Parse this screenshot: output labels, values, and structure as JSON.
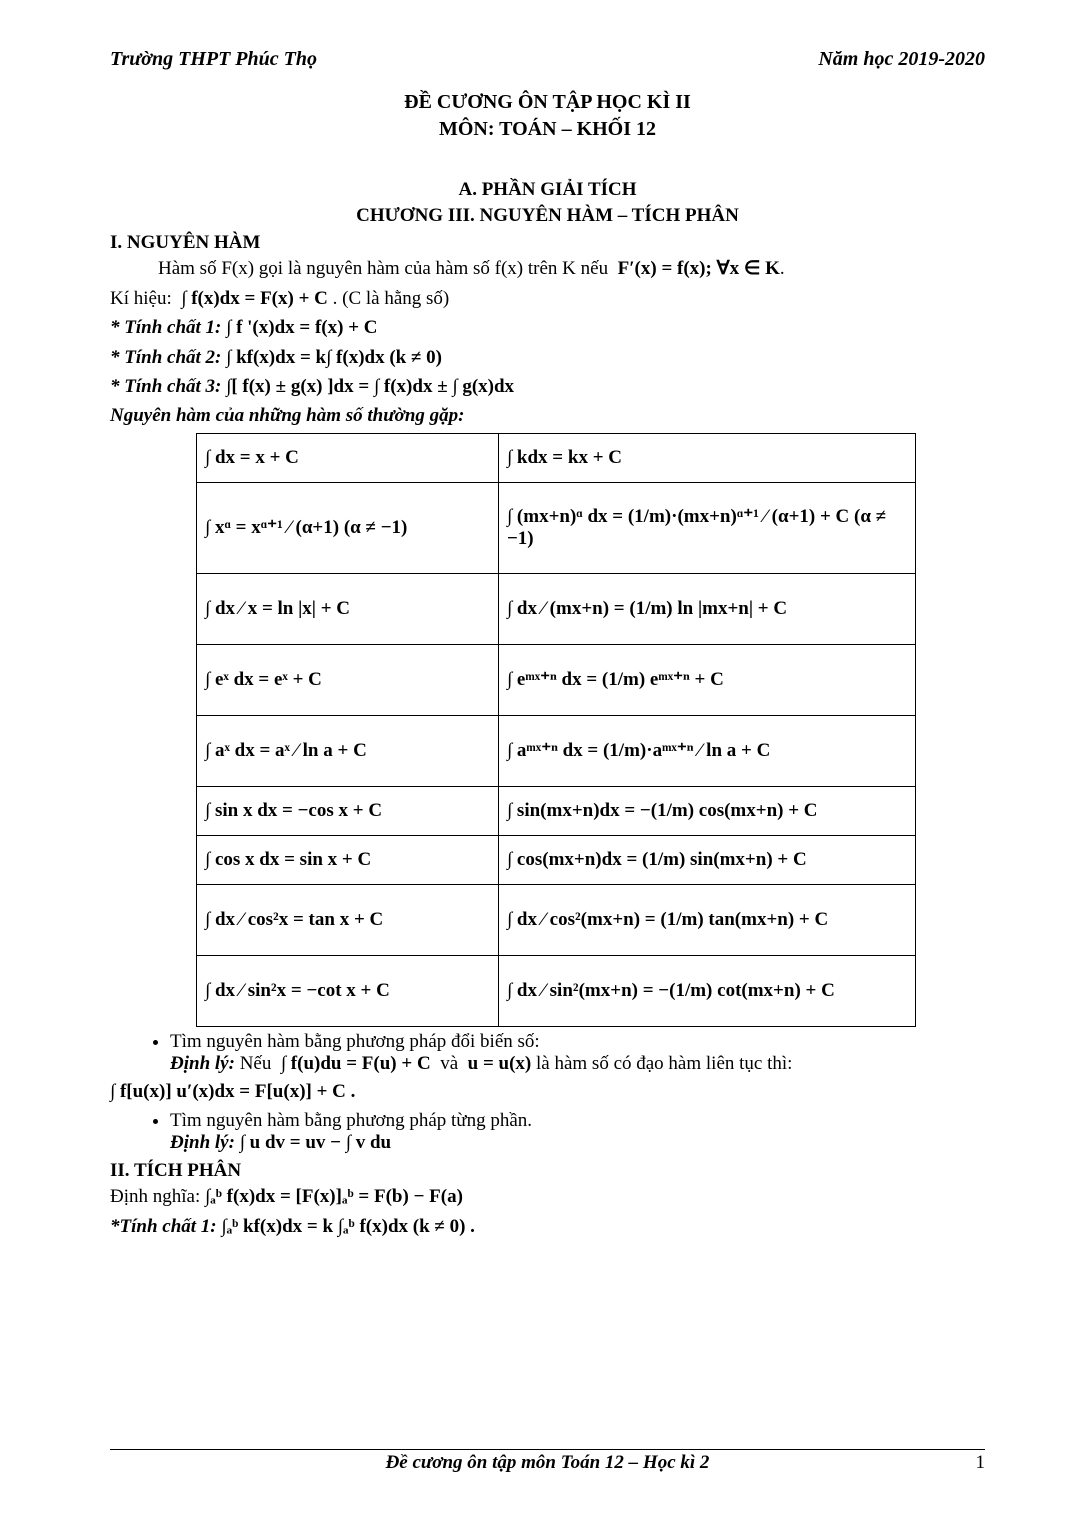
{
  "header": {
    "school": "Trường THPT Phúc Thọ",
    "year": "Năm học 2019-2020"
  },
  "title": {
    "line1": "ĐỀ CƯƠNG ÔN TẬP HỌC KÌ II",
    "line2": "MÔN: TOÁN – KHỐI 12"
  },
  "sectionA": {
    "heading": "A.  PHẦN GIẢI TÍCH",
    "chapter": "CHƯƠNG III. NGUYÊN HÀM – TÍCH PHÂN"
  },
  "s1": {
    "title": "I. NGUYÊN HÀM",
    "defn": "Hàm số F(x) gọi là nguyên hàm của hàm số f(x) trên K nếu  F′(x) = f(x); ∀x ∈ K .",
    "notation": "Kí hiệu:  ∫ f(x)dx = F(x) + C . (C là hằng số)",
    "p1_label": "* Tính chất 1:",
    "p1": " ∫ f '(x)dx = f(x) + C",
    "p2_label": "* Tính chất 2:",
    "p2": " ∫ kf(x)dx = k∫ f(x)dx  (k ≠ 0)",
    "p3_label": "* Tính chất 3:",
    "p3": " ∫[ f(x) ± g(x) ]dx = ∫ f(x)dx ± ∫ g(x)dx",
    "tableTitle": "Nguyên hàm của những hàm số thường gặp:"
  },
  "formulas": [
    [
      "∫ dx = x + C",
      "∫ kdx = kx + C"
    ],
    [
      "∫ xᵅ = xᵅ⁺¹ ⁄ (α+1)  (α ≠ −1)",
      "∫ (mx+n)ᵅ dx = (1/m)·(mx+n)ᵅ⁺¹ ⁄ (α+1) + C (α ≠ −1)"
    ],
    [
      "∫ dx ⁄ x = ln |x| + C",
      "∫ dx ⁄ (mx+n) = (1/m) ln |mx+n| + C"
    ],
    [
      "∫ eˣ dx = eˣ + C",
      "∫ eᵐˣ⁺ⁿ dx = (1/m) eᵐˣ⁺ⁿ + C"
    ],
    [
      "∫ aˣ dx = aˣ ⁄ ln a + C",
      "∫ aᵐˣ⁺ⁿ dx = (1/m)·aᵐˣ⁺ⁿ ⁄ ln a + C"
    ],
    [
      "∫ sin x dx = −cos x + C",
      "∫ sin(mx+n)dx = −(1/m) cos(mx+n) + C"
    ],
    [
      "∫ cos x dx = sin x + C",
      "∫ cos(mx+n)dx = (1/m) sin(mx+n) + C"
    ],
    [
      "∫ dx ⁄ cos²x = tan x + C",
      "∫ dx ⁄ cos²(mx+n) = (1/m) tan(mx+n) + C"
    ],
    [
      "∫ dx ⁄ sin²x = −cot x + C",
      "∫ dx ⁄ sin²(mx+n) = −(1/m) cot(mx+n) + C"
    ]
  ],
  "methods": {
    "bullet1": "Tìm nguyên hàm bằng phương pháp đổi biến số:",
    "dl_label": "Định lý:",
    "dl1_text": " Nếu  ∫ f(u)du = F(u) + C  và  u = u(x)  là hàm số có đạo hàm liên tục thì:",
    "dl1_formula": "∫ f[u(x)] u′(x)dx = F[u(x)] + C .",
    "bullet2": "Tìm nguyên hàm bằng phương pháp từng phần.",
    "dl2_text": "    ∫ u dv = uv − ∫ v du"
  },
  "s2": {
    "title": "II. TÍCH PHÂN",
    "defn_label": "Định nghĩa:",
    "defn": "  ∫ₐᵇ f(x)dx = [F(x)]ₐᵇ = F(b) − F(a)",
    "p1_label": "*Tính chất 1:",
    "p1": "  ∫ₐᵇ kf(x)dx = k ∫ₐᵇ f(x)dx  (k ≠ 0) ."
  },
  "footer": {
    "center": "Đề cương ôn tập môn Toán 12 – Học kì 2",
    "page": "1"
  }
}
